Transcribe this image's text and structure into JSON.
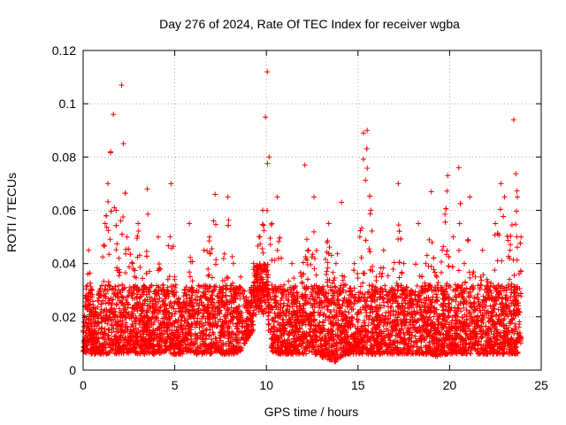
{
  "chart_data": {
    "type": "scatter",
    "title": "Day 276 of 2024, Rate Of TEC Index for receiver wgba",
    "xlabel": "GPS time / hours",
    "ylabel": "ROTI / TECUs",
    "xlim": [
      0,
      25
    ],
    "ylim": [
      0,
      0.12
    ],
    "x_ticks": [
      0,
      5,
      10,
      15,
      20,
      25
    ],
    "x_tick_labels": [
      "0",
      "5",
      "10",
      "15",
      "20",
      "25"
    ],
    "y_ticks": [
      0,
      0.02,
      0.04,
      0.06,
      0.08,
      0.1,
      0.12
    ],
    "y_tick_labels": [
      "0",
      "0.02",
      "0.04",
      "0.06",
      "0.08",
      "0.1",
      "0.12"
    ],
    "grid": true,
    "marker": "+",
    "marker_color": "#ff0000",
    "series": [
      {
        "name": "ROTI",
        "x": [
          0.05,
          0.3,
          0.6,
          0.9,
          1.2,
          1.35,
          1.5,
          1.65,
          1.8,
          1.95,
          2.1,
          2.2,
          2.4,
          2.7,
          3.0,
          3.3,
          3.5,
          3.8,
          4.1,
          4.4,
          4.8,
          5.0,
          5.4,
          5.8,
          6.2,
          6.6,
          6.9,
          7.2,
          7.5,
          7.9,
          8.2,
          8.6,
          9.0,
          9.3,
          9.6,
          9.8,
          9.95,
          10.05,
          10.15,
          10.3,
          10.6,
          11.0,
          11.4,
          11.8,
          12.1,
          12.3,
          12.6,
          13.0,
          13.4,
          13.8,
          14.1,
          14.4,
          14.8,
          15.1,
          15.3,
          15.5,
          15.7,
          16.0,
          16.4,
          16.8,
          17.2,
          17.5,
          17.9,
          18.3,
          18.7,
          19.0,
          19.3,
          19.6,
          19.9,
          20.2,
          20.5,
          20.8,
          21.1,
          21.4,
          21.8,
          22.2,
          22.5,
          22.8,
          23.0,
          23.3,
          23.5,
          23.7,
          23.9
        ],
        "values": [
          0.018,
          0.045,
          0.02,
          0.03,
          0.055,
          0.07,
          0.082,
          0.096,
          0.06,
          0.042,
          0.107,
          0.085,
          0.05,
          0.04,
          0.055,
          0.03,
          0.068,
          0.025,
          0.05,
          0.03,
          0.07,
          0.035,
          0.02,
          0.055,
          0.03,
          0.045,
          0.05,
          0.066,
          0.03,
          0.065,
          0.04,
          0.035,
          0.025,
          0.04,
          0.05,
          0.06,
          0.095,
          0.112,
          0.08,
          0.055,
          0.065,
          0.03,
          0.04,
          0.025,
          0.077,
          0.045,
          0.065,
          0.03,
          0.055,
          0.04,
          0.063,
          0.025,
          0.04,
          0.05,
          0.089,
          0.09,
          0.06,
          0.035,
          0.045,
          0.03,
          0.07,
          0.04,
          0.03,
          0.055,
          0.04,
          0.067,
          0.035,
          0.045,
          0.073,
          0.05,
          0.076,
          0.04,
          0.065,
          0.035,
          0.045,
          0.03,
          0.055,
          0.07,
          0.065,
          0.045,
          0.094,
          0.065,
          0.05
        ],
        "lower_envelope": [
          0.007,
          0.006,
          0.006,
          0.006,
          0.006,
          0.006,
          0.007,
          0.006,
          0.006,
          0.006,
          0.006,
          0.006,
          0.006,
          0.007,
          0.006,
          0.006,
          0.006,
          0.006,
          0.006,
          0.007,
          0.006,
          0.006,
          0.006,
          0.007,
          0.006,
          0.006,
          0.006,
          0.007,
          0.006,
          0.006,
          0.006,
          0.007,
          0.012,
          0.015,
          0.018,
          0.02,
          0.022,
          0.02,
          0.012,
          0.007,
          0.006,
          0.006,
          0.006,
          0.006,
          0.006,
          0.006,
          0.006,
          0.005,
          0.004,
          0.003,
          0.005,
          0.006,
          0.006,
          0.006,
          0.006,
          0.006,
          0.006,
          0.006,
          0.006,
          0.006,
          0.006,
          0.006,
          0.006,
          0.006,
          0.006,
          0.006,
          0.005,
          0.006,
          0.006,
          0.006,
          0.006,
          0.006,
          0.006,
          0.006,
          0.006,
          0.006,
          0.006,
          0.006,
          0.006,
          0.006,
          0.006,
          0.006,
          0.008
        ]
      }
    ]
  }
}
